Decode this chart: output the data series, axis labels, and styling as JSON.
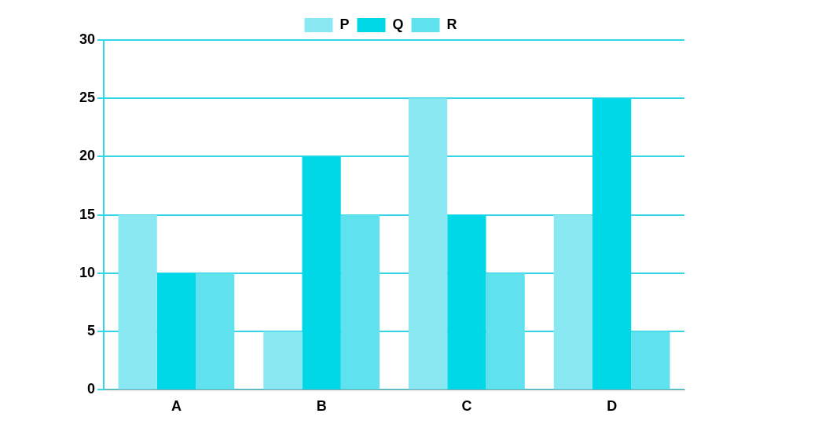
{
  "chart_data": {
    "type": "bar",
    "categories": [
      "A",
      "B",
      "C",
      "D"
    ],
    "series": [
      {
        "name": "P",
        "color": "#8ae8f2",
        "values": [
          15,
          5,
          25,
          15
        ]
      },
      {
        "name": "Q",
        "color": "#00d8e8",
        "values": [
          10,
          20,
          15,
          25
        ]
      },
      {
        "name": "R",
        "color": "#5fe2ee",
        "values": [
          10,
          15,
          10,
          5
        ]
      }
    ],
    "ylim": [
      0,
      30
    ],
    "yticks": [
      0,
      5,
      10,
      15,
      20,
      25,
      30
    ],
    "grid": "y",
    "legend": "top"
  }
}
